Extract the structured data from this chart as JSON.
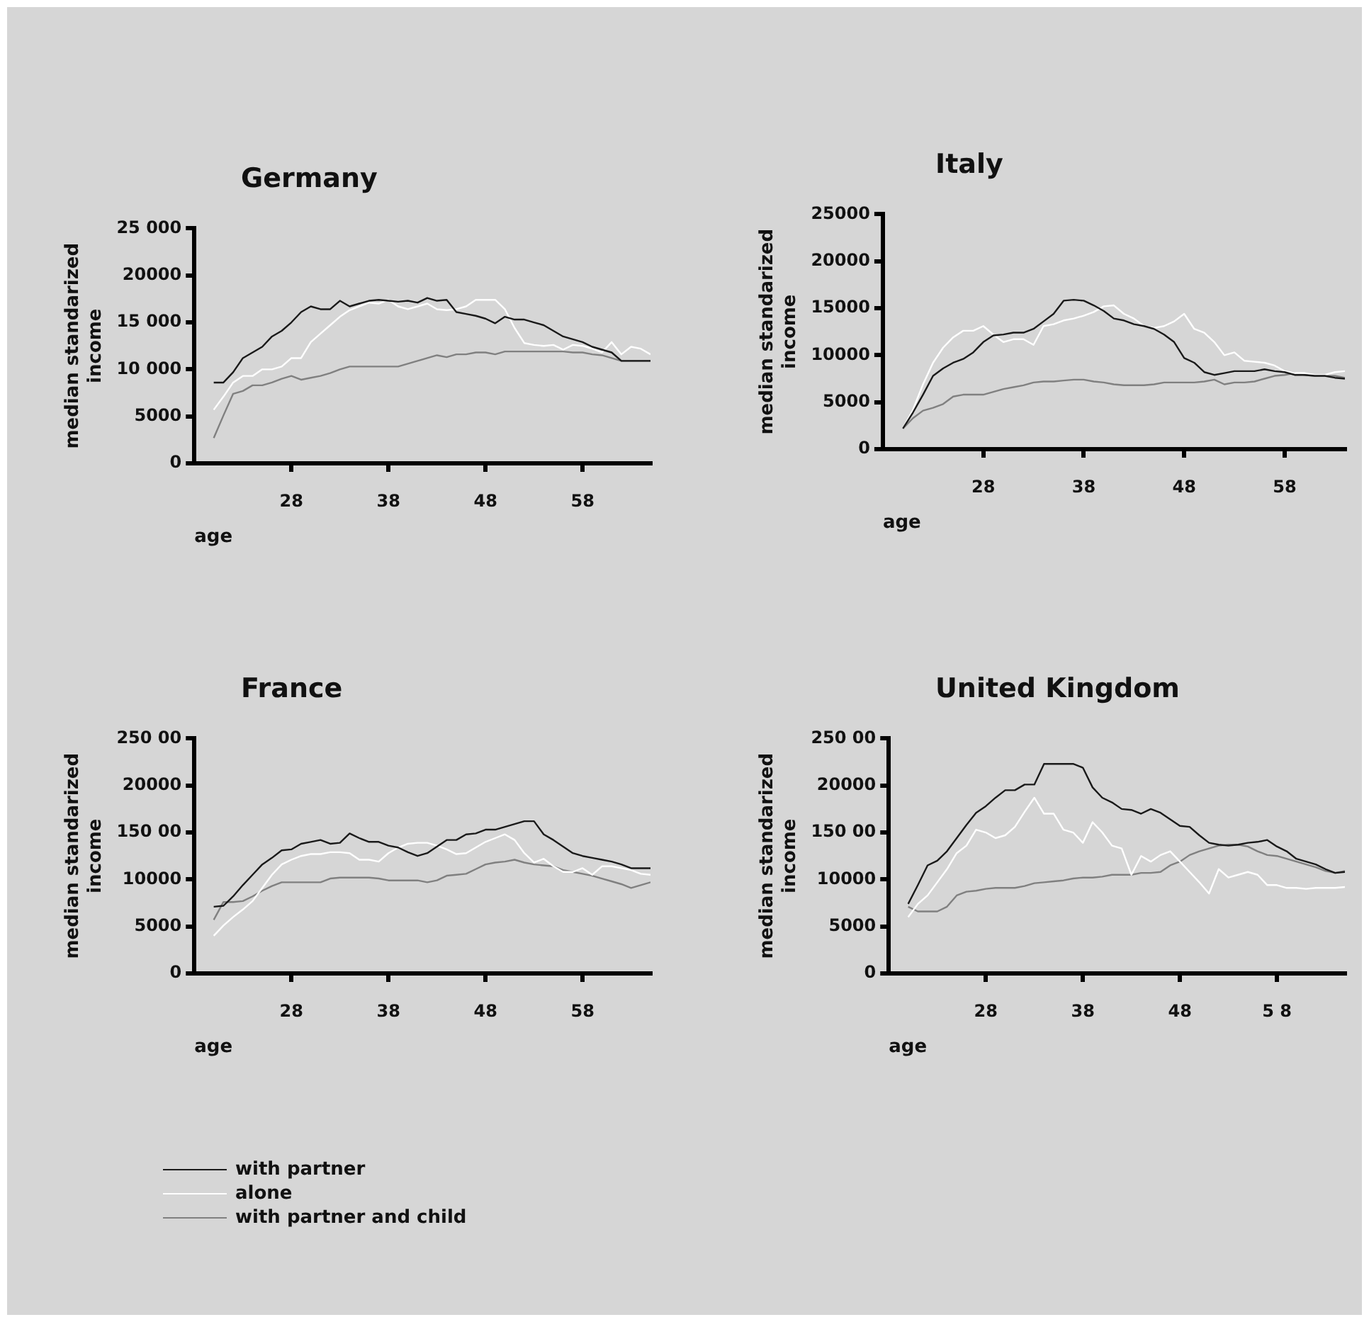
{
  "chart_data": [
    {
      "type": "line",
      "title": "Germany",
      "xlabel": "age",
      "ylabel": "median standarized income",
      "xlim": [
        18,
        65
      ],
      "xticks": [
        28,
        38,
        48,
        58
      ],
      "ylim": [
        0,
        25000
      ],
      "yticks": [
        0,
        {
          "value": 5000,
          "label": "5000"
        },
        {
          "value": 10000,
          "label": "10 000"
        },
        {
          "value": 15000,
          "label": "15 000"
        },
        {
          "value": 20000,
          "label": "20000"
        },
        {
          "value": 25000,
          "label": "25 000"
        }
      ],
      "grid": false,
      "legend": "bottom left",
      "marker": "none",
      "line_style": "solid",
      "x": [
        20,
        21,
        22,
        23,
        24,
        25,
        26,
        27,
        28,
        29,
        30,
        31,
        32,
        33,
        34,
        35,
        36,
        37,
        38,
        39,
        40,
        41,
        42,
        43,
        44,
        45,
        46,
        47,
        48,
        49,
        50,
        51,
        52,
        53,
        54,
        55,
        56,
        57,
        58,
        59,
        60,
        61,
        62,
        63,
        64,
        65
      ],
      "series": [
        {
          "name": "with partner",
          "color": "#1a1a1a",
          "values": [
            8600,
            8600,
            9700,
            11200,
            11800,
            12400,
            13500,
            14100,
            15000,
            16100,
            16700,
            16400,
            16400,
            17300,
            16700,
            17000,
            17300,
            17400,
            17300,
            17200,
            17300,
            17100,
            17600,
            17300,
            17400,
            16100,
            15900,
            15700,
            15400,
            14900,
            15600,
            15300,
            15300,
            15000,
            14700,
            14100,
            13500,
            13200,
            12900,
            12400,
            12100,
            11800,
            10900,
            10900,
            10900,
            10900
          ]
        },
        {
          "name": "alone",
          "color": "#ffffff",
          "values": [
            5700,
            7100,
            8600,
            9300,
            9300,
            10000,
            10000,
            10300,
            11200,
            11200,
            12900,
            13800,
            14700,
            15600,
            16300,
            16700,
            17100,
            17000,
            17400,
            16700,
            16400,
            16700,
            17000,
            16400,
            16300,
            16400,
            16700,
            17400,
            17400,
            17400,
            16400,
            14400,
            12800,
            12600,
            12500,
            12600,
            12100,
            12600,
            12500,
            12200,
            11800,
            12900,
            11600,
            12400,
            12200,
            11600
          ]
        },
        {
          "name": "with partner and child",
          "color": "#808080",
          "values": [
            2700,
            5100,
            7400,
            7700,
            8300,
            8300,
            8600,
            9000,
            9300,
            8900,
            9100,
            9300,
            9600,
            10000,
            10300,
            10300,
            10300,
            10300,
            10300,
            10300,
            10600,
            10900,
            11200,
            11500,
            11300,
            11600,
            11600,
            11800,
            11800,
            11600,
            11900,
            11900,
            11900,
            11900,
            11900,
            11900,
            11900,
            11800,
            11800,
            11600,
            11500,
            11200,
            10900,
            10900,
            10900,
            10900
          ]
        }
      ]
    },
    {
      "type": "line",
      "title": "Italy",
      "xlabel": "age",
      "ylabel": "median standarized income",
      "xlim": [
        18,
        64
      ],
      "xticks": [
        28,
        38,
        48,
        58
      ],
      "ylim": [
        0,
        25000
      ],
      "yticks": [
        0,
        5000,
        10000,
        15000,
        20000,
        25000
      ],
      "grid": false,
      "marker": "none",
      "line_style": "solid",
      "x": [
        20,
        21,
        22,
        23,
        24,
        25,
        26,
        27,
        28,
        29,
        30,
        31,
        32,
        33,
        34,
        35,
        36,
        37,
        38,
        39,
        40,
        41,
        42,
        43,
        44,
        45,
        46,
        47,
        48,
        49,
        50,
        51,
        52,
        53,
        54,
        55,
        56,
        57,
        58,
        59,
        60,
        61,
        62,
        63,
        64
      ],
      "series": [
        {
          "color": "#1a1a1a",
          "values": [
            2200,
            3900,
            5800,
            7800,
            8600,
            9200,
            9600,
            10300,
            11400,
            12100,
            12200,
            12400,
            12400,
            12800,
            13600,
            14400,
            15800,
            15900,
            15800,
            15300,
            14700,
            13900,
            13700,
            13300,
            13100,
            12800,
            12200,
            11400,
            9700,
            9200,
            8200,
            7900,
            8100,
            8300,
            8300,
            8300,
            8500,
            8300,
            8200,
            7900,
            7900,
            7800,
            7800,
            7600,
            7500
          ]
        },
        {
          "color": "#ffffff",
          "values": [
            2200,
            4200,
            6900,
            9200,
            10800,
            11900,
            12600,
            12600,
            13100,
            12200,
            11400,
            11700,
            11700,
            11100,
            13100,
            13300,
            13700,
            13900,
            14200,
            14600,
            15200,
            15300,
            14400,
            13900,
            13100,
            12900,
            13100,
            13600,
            14400,
            12800,
            12400,
            11400,
            10000,
            10300,
            9400,
            9300,
            9200,
            8900,
            8300,
            8100,
            8100,
            7900,
            7900,
            8200,
            8300
          ]
        },
        {
          "color": "#808080",
          "values": [
            2200,
            3300,
            4100,
            4400,
            4800,
            5600,
            5800,
            5800,
            5800,
            6100,
            6400,
            6600,
            6800,
            7100,
            7200,
            7200,
            7300,
            7400,
            7400,
            7200,
            7100,
            6900,
            6800,
            6800,
            6800,
            6900,
            7100,
            7100,
            7100,
            7100,
            7200,
            7400,
            6900,
            7100,
            7100,
            7200,
            7500,
            7800,
            7900,
            8100,
            7900,
            7800,
            7800,
            7800,
            7600
          ]
        }
      ]
    },
    {
      "type": "line",
      "title": "France",
      "xlabel": "age",
      "ylabel": "median standarized income",
      "xlim": [
        18,
        65
      ],
      "xticks": [
        28,
        38,
        48,
        58
      ],
      "ylim": [
        0,
        25000
      ],
      "yticks": [
        0,
        {
          "value": 5000,
          "label": "5000"
        },
        {
          "value": 10000,
          "label": "10000"
        },
        {
          "value": 15000,
          "label": "150 00"
        },
        {
          "value": 20000,
          "label": "20000"
        },
        {
          "value": 25000,
          "label": "250 00"
        }
      ],
      "grid": false,
      "marker": "none",
      "line_style": "solid",
      "x": [
        20,
        21,
        22,
        23,
        24,
        25,
        26,
        27,
        28,
        29,
        30,
        31,
        32,
        33,
        34,
        35,
        36,
        37,
        38,
        39,
        40,
        41,
        42,
        43,
        44,
        45,
        46,
        47,
        48,
        49,
        50,
        51,
        52,
        53,
        54,
        55,
        56,
        57,
        58,
        59,
        60,
        61,
        62,
        63,
        64,
        65
      ],
      "series": [
        {
          "color": "#1a1a1a",
          "values": [
            7100,
            7200,
            8200,
            9400,
            10500,
            11600,
            12300,
            13100,
            13200,
            13800,
            14000,
            14200,
            13800,
            13900,
            14900,
            14400,
            14000,
            14000,
            13600,
            13400,
            12900,
            12500,
            12800,
            13500,
            14200,
            14200,
            14800,
            14900,
            15300,
            15300,
            15600,
            15900,
            16200,
            16200,
            14800,
            14200,
            13500,
            12800,
            12500,
            12300,
            12100,
            11900,
            11600,
            11200,
            11200,
            11200
          ]
        },
        {
          "color": "#ffffff",
          "values": [
            4000,
            5100,
            6000,
            6800,
            7700,
            9100,
            10500,
            11600,
            12100,
            12500,
            12700,
            12700,
            12900,
            12900,
            12800,
            12100,
            12100,
            11900,
            12800,
            13400,
            13800,
            13900,
            13900,
            13600,
            13200,
            12700,
            12800,
            13400,
            14000,
            14400,
            14800,
            14200,
            12800,
            11800,
            12200,
            11400,
            10800,
            10800,
            11200,
            10500,
            11400,
            11400,
            11200,
            11000,
            10600,
            10500
          ]
        },
        {
          "color": "#808080",
          "values": [
            5700,
            7600,
            7600,
            7700,
            8200,
            8800,
            9300,
            9700,
            9700,
            9700,
            9700,
            9700,
            10100,
            10200,
            10200,
            10200,
            10200,
            10100,
            9900,
            9900,
            9900,
            9900,
            9700,
            9900,
            10400,
            10500,
            10600,
            11100,
            11600,
            11800,
            11900,
            12100,
            11800,
            11600,
            11500,
            11400,
            11000,
            10800,
            10600,
            10400,
            10100,
            9800,
            9500,
            9100,
            9400,
            9700
          ]
        }
      ]
    },
    {
      "type": "line",
      "title": "United Kingdom",
      "xlabel": "age",
      "ylabel": "median standarized income",
      "xlim": [
        18,
        65
      ],
      "xticks": [
        28,
        38,
        48,
        {
          "value": 58,
          "label": "5 8"
        }
      ],
      "ylim": [
        0,
        25000
      ],
      "yticks": [
        0,
        {
          "value": 5000,
          "label": "5000"
        },
        {
          "value": 10000,
          "label": "10000"
        },
        {
          "value": 15000,
          "label": "150 00"
        },
        {
          "value": 20000,
          "label": "20000"
        },
        {
          "value": 25000,
          "label": "250 00"
        }
      ],
      "grid": false,
      "marker": "none",
      "line_style": "solid",
      "x": [
        20,
        21,
        22,
        23,
        24,
        25,
        26,
        27,
        28,
        29,
        30,
        31,
        32,
        33,
        34,
        35,
        36,
        37,
        38,
        39,
        40,
        41,
        42,
        43,
        44,
        45,
        46,
        47,
        48,
        49,
        50,
        51,
        52,
        53,
        54,
        55,
        56,
        57,
        58,
        59,
        60,
        61,
        62,
        63,
        64,
        65
      ],
      "series": [
        {
          "color": "#1a1a1a",
          "values": [
            7400,
            9400,
            11500,
            12000,
            13000,
            14400,
            15800,
            17100,
            17800,
            18700,
            19500,
            19500,
            20100,
            20100,
            22300,
            22300,
            22300,
            22300,
            21900,
            19800,
            18700,
            18200,
            17500,
            17400,
            17000,
            17500,
            17100,
            16400,
            15700,
            15600,
            14700,
            13900,
            13700,
            13600,
            13700,
            13900,
            14000,
            14200,
            13500,
            13000,
            12200,
            11900,
            11600,
            11100,
            10700,
            10800
          ]
        },
        {
          "color": "#ffffff",
          "values": [
            6000,
            7400,
            8300,
            9700,
            11100,
            12800,
            13600,
            15300,
            15000,
            14400,
            14700,
            15600,
            17200,
            18700,
            17000,
            17000,
            15300,
            15000,
            13900,
            16100,
            15000,
            13600,
            13300,
            10500,
            12500,
            11900,
            12600,
            13000,
            11900,
            10800,
            9700,
            8500,
            11100,
            10200,
            10500,
            10800,
            10500,
            9400,
            9400,
            9100,
            9100,
            9000,
            9100,
            9100,
            9100,
            9200
          ]
        },
        {
          "color": "#808080",
          "values": [
            7100,
            6600,
            6600,
            6600,
            7100,
            8300,
            8700,
            8800,
            9000,
            9100,
            9100,
            9100,
            9300,
            9600,
            9700,
            9800,
            9900,
            10100,
            10200,
            10200,
            10300,
            10500,
            10500,
            10500,
            10700,
            10700,
            10800,
            11500,
            11900,
            12600,
            13000,
            13300,
            13600,
            13700,
            13700,
            13500,
            13000,
            12600,
            12500,
            12200,
            11900,
            11600,
            11300,
            10900,
            10700,
            10900
          ]
        }
      ]
    }
  ]
}
